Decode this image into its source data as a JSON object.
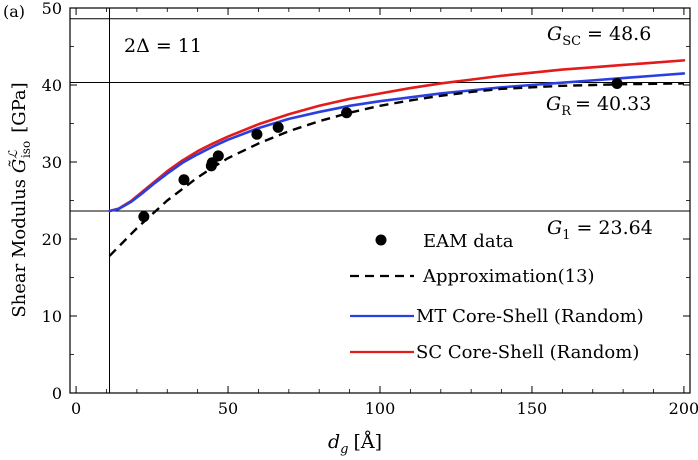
{
  "chart_data": {
    "type": "scatter",
    "panel_label": "(a)",
    "xlabel_symbol": "d",
    "xlabel_sub": "g",
    "xlabel_unit": "[Å]",
    "ylabel_text": "Shear Modulus",
    "ylabel_symbol": "G̃",
    "ylabel_sup": "ℒ",
    "ylabel_sub": "iso",
    "ylabel_unit": "[GPa]",
    "xlim": [
      -2,
      202
    ],
    "ylim": [
      0,
      50
    ],
    "xticks": [
      0,
      50,
      100,
      150,
      200
    ],
    "yticks": [
      0,
      10,
      20,
      30,
      40,
      50
    ],
    "grid": false,
    "legend_position": "bottom-right",
    "reference_lines": {
      "horizontal": [
        {
          "name": "G_SC",
          "y": 48.6,
          "label_main": "G",
          "label_sub": "SC",
          "label_value": "= 48.6"
        },
        {
          "name": "G_R",
          "y": 40.33,
          "label_main": "G",
          "label_sub": "R",
          "label_value": "= 40.33"
        },
        {
          "name": "G_1",
          "y": 23.64,
          "label_main": "G",
          "label_sub": "1",
          "label_value": "= 23.64"
        }
      ],
      "vertical": [
        {
          "name": "2Delta",
          "x": 11,
          "label": "2Δ = 11"
        }
      ]
    },
    "series": [
      {
        "name": "EAM data",
        "kind": "scatter",
        "color": "#000000",
        "x": [
          22.3,
          35.5,
          44.5,
          44.8,
          46.8,
          59.5,
          66.5,
          89.0,
          178.0
        ],
        "y": [
          22.9,
          27.7,
          29.5,
          29.9,
          30.8,
          33.6,
          34.5,
          36.4,
          40.2
        ]
      },
      {
        "name": "Approximation(13)",
        "kind": "dashed-line",
        "color": "#000000",
        "x": [
          11,
          15,
          20,
          25,
          30,
          35,
          40,
          45,
          50,
          60,
          70,
          80,
          90,
          100,
          110,
          120,
          130,
          140,
          150,
          160,
          170,
          180,
          190,
          200
        ],
        "y": [
          17.8,
          19.4,
          21.4,
          23.2,
          25.0,
          26.5,
          28.0,
          29.3,
          30.5,
          32.4,
          34.0,
          35.3,
          36.4,
          37.3,
          38.0,
          38.6,
          39.1,
          39.5,
          39.7,
          39.9,
          40.0,
          40.1,
          40.15,
          40.2
        ]
      },
      {
        "name": "MT Core-Shell (Random)",
        "kind": "line",
        "color": "#2b3fe0",
        "x": [
          11,
          14,
          18,
          22,
          26,
          30,
          35,
          40,
          45,
          50,
          60,
          70,
          80,
          90,
          100,
          110,
          120,
          130,
          140,
          150,
          160,
          170,
          180,
          190,
          200
        ],
        "y": [
          23.64,
          23.9,
          24.8,
          26.0,
          27.3,
          28.5,
          29.9,
          31.0,
          32.0,
          32.9,
          34.4,
          35.6,
          36.5,
          37.3,
          37.9,
          38.4,
          38.9,
          39.3,
          39.7,
          40.0,
          40.3,
          40.6,
          40.9,
          41.2,
          41.5
        ]
      },
      {
        "name": "SC Core-Shell (Random)",
        "kind": "line",
        "color": "#e31b1b",
        "x": [
          11,
          14,
          18,
          22,
          26,
          30,
          35,
          40,
          45,
          50,
          60,
          70,
          80,
          90,
          100,
          110,
          120,
          130,
          140,
          150,
          160,
          170,
          180,
          190,
          200
        ],
        "y": [
          23.64,
          23.95,
          24.9,
          26.2,
          27.5,
          28.8,
          30.2,
          31.4,
          32.4,
          33.3,
          34.9,
          36.2,
          37.3,
          38.2,
          38.9,
          39.6,
          40.2,
          40.7,
          41.2,
          41.6,
          42.0,
          42.3,
          42.6,
          42.9,
          43.2
        ]
      }
    ]
  }
}
